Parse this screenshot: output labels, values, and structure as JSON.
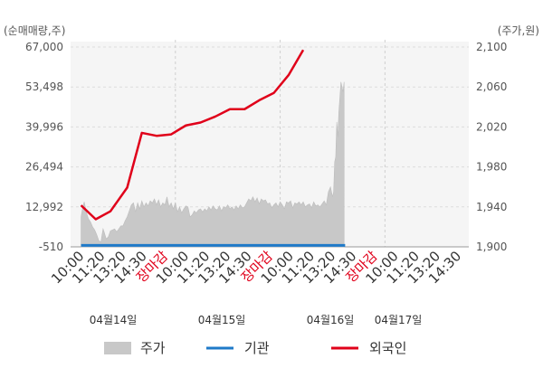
{
  "units": {
    "left": "(순매매량,주)",
    "right": "(주가,원)"
  },
  "left_axis_ticks": [
    "67,000",
    "53,498",
    "39,996",
    "26,494",
    "12,992",
    "-510"
  ],
  "right_axis_ticks": [
    "2,100",
    "2,060",
    "2,020",
    "1,980",
    "1,940",
    "1,900"
  ],
  "x_tick_labels": [
    "10:00",
    "11:20",
    "13:20",
    "14:30",
    "장마감",
    "10:00",
    "11:20",
    "13:20",
    "14:30",
    "장마감",
    "10:00",
    "11:20",
    "13:20",
    "14:30",
    "장마감",
    "10:00",
    "11:20",
    "13:20",
    "14:30"
  ],
  "date_labels": [
    "04월14일",
    "04월15일",
    "04월16일",
    "04월17일"
  ],
  "legend": [
    {
      "label": "주가",
      "color": "#c8c8c8"
    },
    {
      "label": "기관",
      "color": "#1f7ac8"
    },
    {
      "label": "외국인",
      "color": "#e0001a"
    }
  ],
  "chart_data": {
    "type": "line",
    "left_axis": {
      "label": "(순매매량,주)",
      "range": [
        -510,
        67000
      ]
    },
    "right_axis": {
      "label": "(주가,원)",
      "range": [
        1900,
        2100
      ]
    },
    "grid": true,
    "legend_position": "bottom",
    "sessions": [
      {
        "date": "04월14일",
        "ticks": [
          "10:00",
          "11:20",
          "13:20",
          "14:30",
          "장마감"
        ]
      },
      {
        "date": "04월15일",
        "ticks": [
          "10:00",
          "11:20",
          "13:20",
          "14:30",
          "장마감"
        ]
      },
      {
        "date": "04월16일",
        "ticks": [
          "10:00",
          "11:20",
          "13:20",
          "14:30",
          "장마감"
        ]
      },
      {
        "date": "04월17일",
        "ticks": [
          "10:00",
          "11:20",
          "13:20",
          "14:30"
        ]
      }
    ],
    "series": [
      {
        "name": "주가",
        "type": "area",
        "axis": "right",
        "color": "#c8c8c8",
        "points": [
          [
            0.0,
            1930
          ],
          [
            0.08,
            1940
          ],
          [
            0.15,
            1945
          ],
          [
            0.25,
            1935
          ],
          [
            0.35,
            1928
          ],
          [
            0.45,
            1925
          ],
          [
            0.55,
            1920
          ],
          [
            0.65,
            1917
          ],
          [
            0.75,
            1912
          ],
          [
            0.85,
            1906
          ],
          [
            0.95,
            1905
          ],
          [
            1.0,
            1912
          ],
          [
            1.05,
            1918
          ],
          [
            1.1,
            1915
          ],
          [
            1.2,
            1908
          ],
          [
            1.3,
            1910
          ],
          [
            1.4,
            1916
          ],
          [
            1.5,
            1917
          ],
          [
            1.6,
            1918
          ],
          [
            1.7,
            1915
          ],
          [
            1.8,
            1918
          ],
          [
            1.9,
            1921
          ],
          [
            2.0,
            1921
          ],
          [
            2.1,
            1926
          ],
          [
            2.2,
            1930
          ],
          [
            2.3,
            1936
          ],
          [
            2.4,
            1942
          ],
          [
            2.5,
            1944
          ],
          [
            2.6,
            1935
          ],
          [
            2.7,
            1944
          ],
          [
            2.8,
            1938
          ],
          [
            2.9,
            1946
          ],
          [
            3.0,
            1940
          ],
          [
            3.1,
            1944
          ],
          [
            3.2,
            1941
          ],
          [
            3.3,
            1946
          ],
          [
            3.4,
            1944
          ],
          [
            3.5,
            1948
          ],
          [
            3.6,
            1942
          ],
          [
            3.7,
            1947
          ],
          [
            3.8,
            1940
          ],
          [
            3.9,
            1944
          ],
          [
            4.0,
            1942
          ],
          [
            4.1,
            1950
          ],
          [
            4.2,
            1940
          ],
          [
            4.3,
            1944
          ],
          [
            4.4,
            1938
          ],
          [
            4.5,
            1944
          ],
          [
            4.6,
            1935
          ],
          [
            4.7,
            1940
          ],
          [
            4.8,
            1934
          ],
          [
            4.9,
            1938
          ],
          [
            5.0,
            1941
          ],
          [
            5.1,
            1940
          ],
          [
            5.2,
            1930
          ],
          [
            5.3,
            1932
          ],
          [
            5.4,
            1936
          ],
          [
            5.5,
            1934
          ],
          [
            5.6,
            1937
          ],
          [
            5.7,
            1938
          ],
          [
            5.8,
            1935
          ],
          [
            5.9,
            1938
          ],
          [
            6.0,
            1936
          ],
          [
            6.1,
            1940
          ],
          [
            6.2,
            1937
          ],
          [
            6.3,
            1941
          ],
          [
            6.4,
            1938
          ],
          [
            6.5,
            1937
          ],
          [
            6.6,
            1941
          ],
          [
            6.7,
            1936
          ],
          [
            6.8,
            1940
          ],
          [
            6.9,
            1939
          ],
          [
            7.0,
            1942
          ],
          [
            7.1,
            1938
          ],
          [
            7.2,
            1940
          ],
          [
            7.3,
            1937
          ],
          [
            7.4,
            1941
          ],
          [
            7.5,
            1938
          ],
          [
            7.6,
            1942
          ],
          [
            7.7,
            1939
          ],
          [
            7.8,
            1940
          ],
          [
            8.0,
            1948
          ],
          [
            8.1,
            1946
          ],
          [
            8.2,
            1950
          ],
          [
            8.3,
            1945
          ],
          [
            8.4,
            1949
          ],
          [
            8.5,
            1943
          ],
          [
            8.6,
            1948
          ],
          [
            8.7,
            1946
          ],
          [
            8.8,
            1947
          ],
          [
            8.9,
            1943
          ],
          [
            9.0,
            1944
          ],
          [
            9.1,
            1939
          ],
          [
            9.2,
            1942
          ],
          [
            9.3,
            1944
          ],
          [
            9.4,
            1940
          ],
          [
            9.5,
            1945
          ],
          [
            9.6,
            1942
          ],
          [
            9.7,
            1938
          ],
          [
            9.8,
            1945
          ],
          [
            9.9,
            1944
          ],
          [
            10.0,
            1946
          ],
          [
            10.1,
            1939
          ],
          [
            10.2,
            1944
          ],
          [
            10.3,
            1943
          ],
          [
            10.4,
            1945
          ],
          [
            10.5,
            1942
          ],
          [
            10.6,
            1945
          ],
          [
            10.7,
            1940
          ],
          [
            10.8,
            1942
          ],
          [
            10.9,
            1943
          ],
          [
            11.0,
            1939
          ],
          [
            11.1,
            1945
          ],
          [
            11.2,
            1941
          ],
          [
            11.3,
            1942
          ],
          [
            11.4,
            1940
          ],
          [
            11.5,
            1943
          ],
          [
            11.6,
            1946
          ],
          [
            11.7,
            1942
          ],
          [
            11.8,
            1955
          ],
          [
            11.9,
            1960
          ],
          [
            12.0,
            1950
          ],
          [
            12.05,
            1955
          ],
          [
            12.1,
            1985
          ],
          [
            12.15,
            1990
          ],
          [
            12.2,
            2025
          ],
          [
            12.25,
            2010
          ],
          [
            12.3,
            2035
          ],
          [
            12.35,
            2050
          ],
          [
            12.4,
            2065
          ],
          [
            12.45,
            2060
          ],
          [
            12.5,
            2055
          ],
          [
            12.55,
            2065
          ]
        ]
      },
      {
        "name": "기관",
        "type": "line",
        "axis": "left",
        "color": "#1f7ac8",
        "points": [
          [
            0.0,
            0
          ],
          [
            12.6,
            0
          ]
        ]
      },
      {
        "name": "외국인",
        "type": "line",
        "axis": "left",
        "color": "#e0001a",
        "points": [
          [
            0.0,
            13500
          ],
          [
            0.7,
            8800
          ],
          [
            1.4,
            11500
          ],
          [
            2.2,
            19500
          ],
          [
            2.9,
            38000
          ],
          [
            3.6,
            37000
          ],
          [
            4.3,
            37500
          ],
          [
            5.0,
            40500
          ],
          [
            5.7,
            41500
          ],
          [
            6.4,
            43500
          ],
          [
            7.1,
            46000
          ],
          [
            7.8,
            46000
          ],
          [
            8.5,
            49000
          ],
          [
            9.2,
            51500
          ],
          [
            9.9,
            57500
          ],
          [
            10.6,
            66000
          ]
        ]
      }
    ]
  }
}
